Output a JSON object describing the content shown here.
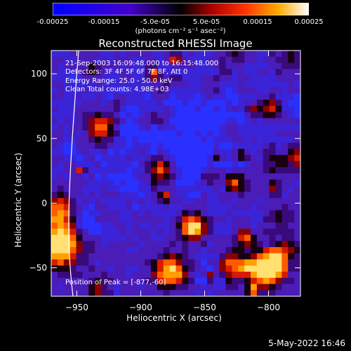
{
  "colorbar": {
    "ticks": [
      "-0.00025",
      "-0.00015",
      "-5.0e-05",
      "5.0e-05",
      "0.00015",
      "0.00025"
    ],
    "unit_label": "(photons cm⁻² s⁻¹ asec⁻²)",
    "range": [
      -0.00025,
      0.00025
    ]
  },
  "chart_data": {
    "type": "heatmap",
    "title": "Reconstructed RHESSI Image",
    "xlabel": "Heliocentric X (arcsec)",
    "ylabel": "Heliocentric Y (arcsec)",
    "xlim": [
      -970,
      -775
    ],
    "ylim": [
      -72,
      118
    ],
    "x_ticks": [
      -950,
      -900,
      -850,
      -800
    ],
    "y_ticks": [
      -50,
      0,
      50,
      100
    ],
    "x_tick_labels": [
      "−950",
      "−900",
      "−850",
      "−800"
    ],
    "y_tick_labels": [
      "−50",
      "0",
      "50",
      "100"
    ],
    "peak_position": [
      -877,
      -60
    ],
    "annotations": [
      "21-Sep-2003 16:09:48.000 to 16:15:48.000",
      "Detectors: 3F 4F 5F 6F 7F 8F, Att 0",
      "Energy Range: 25.0 - 50.0 keV",
      "Clean     Total counts: 4.98E+03"
    ],
    "peak_label": "Position of Peak = [-877,-60]"
  },
  "footer": {
    "date": "5-May-2022 16:46"
  }
}
